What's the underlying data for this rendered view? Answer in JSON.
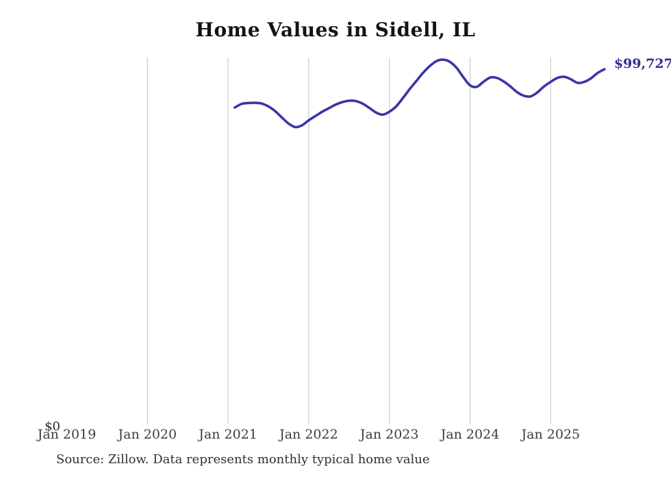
{
  "page": {
    "source_note": "Source: Zillow. Data represents monthly typical home value"
  },
  "chart_data": {
    "type": "line",
    "title": "Home Values in Sidell, IL",
    "xlabel": "",
    "ylabel": "",
    "unit": "USD",
    "legend": "none",
    "grid": "vertical-only",
    "ylim": [
      0,
      103000
    ],
    "x_range": [
      "Jan 2019",
      "Sep 2025"
    ],
    "x_ticks": [
      "Jan 2019",
      "Jan 2020",
      "Jan 2021",
      "Jan 2022",
      "Jan 2023",
      "Jan 2024",
      "Jan 2025"
    ],
    "y_zero_label": "$0",
    "end_label": "$99,727",
    "end_value": 99727,
    "line_color": "#3a35a6",
    "end_label_color": "#322f8e",
    "grid_color": "#cbcbcb",
    "series": [
      {
        "name": "Monthly typical home value",
        "x": [
          "2021-02",
          "2021-03",
          "2021-04",
          "2021-05",
          "2021-06",
          "2021-07",
          "2021-08",
          "2021-09",
          "2021-10",
          "2021-11",
          "2021-12",
          "2022-01",
          "2022-02",
          "2022-03",
          "2022-04",
          "2022-05",
          "2022-06",
          "2022-07",
          "2022-08",
          "2022-09",
          "2022-10",
          "2022-11",
          "2022-12",
          "2023-01",
          "2023-02",
          "2023-03",
          "2023-04",
          "2023-05",
          "2023-06",
          "2023-07",
          "2023-08",
          "2023-09",
          "2023-10",
          "2023-11",
          "2023-12",
          "2024-01",
          "2024-02",
          "2024-03",
          "2024-04",
          "2024-05",
          "2024-06",
          "2024-07",
          "2024-08",
          "2024-09",
          "2024-10",
          "2024-11",
          "2024-12",
          "2025-01",
          "2025-02",
          "2025-03",
          "2025-04",
          "2025-05",
          "2025-06",
          "2025-07",
          "2025-08",
          "2025-09"
        ],
        "values": [
          89000,
          90000,
          90250,
          90300,
          90100,
          89300,
          88000,
          86200,
          84500,
          83500,
          84000,
          85400,
          86600,
          87800,
          88800,
          89800,
          90500,
          90900,
          90800,
          90100,
          88900,
          87600,
          87000,
          87800,
          89300,
          91600,
          94100,
          96400,
          98700,
          100600,
          102000,
          102400,
          101800,
          100100,
          97500,
          95200,
          94800,
          96200,
          97400,
          97300,
          96300,
          94900,
          93300,
          92300,
          92100,
          93200,
          94900,
          96200,
          97300,
          97600,
          96900,
          95900,
          96200,
          97200,
          98700,
          99727
        ]
      }
    ]
  }
}
